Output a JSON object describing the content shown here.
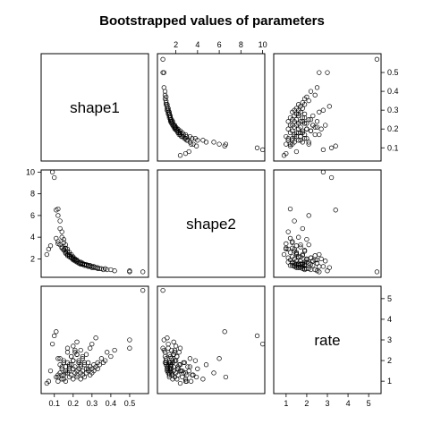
{
  "chart_data": {
    "type": "scatter",
    "title": "Bootstrapped values of parameters",
    "layout": "pairs",
    "variables": [
      "shape1",
      "shape2",
      "rate"
    ],
    "ranges": {
      "shape1": [
        0.03,
        0.6
      ],
      "shape2": [
        0.3,
        10.2
      ],
      "rate": [
        0.4,
        5.6
      ]
    },
    "ticks": {
      "shape1": [
        0.1,
        0.2,
        0.3,
        0.4,
        0.5
      ],
      "shape2": [
        2,
        4,
        6,
        8,
        10
      ],
      "rate": [
        1,
        2,
        3,
        4,
        5
      ]
    },
    "tick_labels": {
      "shape1": [
        "0.1",
        "0.2",
        "0.3",
        "0.4",
        "0.5"
      ],
      "shape2": [
        "2",
        "4",
        "6",
        "8",
        "10"
      ],
      "rate": [
        "1",
        "2",
        "3",
        "4",
        "5"
      ]
    },
    "points": {
      "shape1": [
        0.57,
        0.5,
        0.5,
        0.42,
        0.4,
        0.38,
        0.37,
        0.36,
        0.35,
        0.34,
        0.33,
        0.33,
        0.32,
        0.31,
        0.31,
        0.3,
        0.3,
        0.29,
        0.29,
        0.28,
        0.28,
        0.27,
        0.27,
        0.26,
        0.26,
        0.25,
        0.25,
        0.24,
        0.24,
        0.24,
        0.23,
        0.23,
        0.22,
        0.22,
        0.22,
        0.21,
        0.21,
        0.2,
        0.2,
        0.2,
        0.19,
        0.19,
        0.18,
        0.18,
        0.17,
        0.17,
        0.16,
        0.16,
        0.15,
        0.15,
        0.14,
        0.14,
        0.13,
        0.13,
        0.12,
        0.12,
        0.11,
        0.1,
        0.09,
        0.08,
        0.07,
        0.06,
        0.25,
        0.22,
        0.18,
        0.2,
        0.15,
        0.28,
        0.24,
        0.19,
        0.16,
        0.21,
        0.23,
        0.17,
        0.14,
        0.12,
        0.26,
        0.3,
        0.11,
        0.13,
        0.27,
        0.22,
        0.18,
        0.2,
        0.24,
        0.16,
        0.19,
        0.21,
        0.15,
        0.23,
        0.29,
        0.17,
        0.14,
        0.25,
        0.32,
        0.12,
        0.2,
        0.18,
        0.22,
        0.16
      ],
      "shape2": [
        0.8,
        0.9,
        0.8,
        0.9,
        1.0,
        1.0,
        1.1,
        1.0,
        1.1,
        1.1,
        1.2,
        1.1,
        1.2,
        1.2,
        1.3,
        1.2,
        1.3,
        1.3,
        1.4,
        1.3,
        1.4,
        1.4,
        1.5,
        1.4,
        1.5,
        1.5,
        1.6,
        1.5,
        1.6,
        1.7,
        1.6,
        1.7,
        1.7,
        1.8,
        1.9,
        1.8,
        2.0,
        1.9,
        2.1,
        2.2,
        2.2,
        2.4,
        2.4,
        2.6,
        2.7,
        2.9,
        3.0,
        3.3,
        3.5,
        3.8,
        4.0,
        4.5,
        4.8,
        5.5,
        6.0,
        6.6,
        6.5,
        9.5,
        10.0,
        3.2,
        2.9,
        2.4,
        1.6,
        1.8,
        2.3,
        2.0,
        2.8,
        1.4,
        1.6,
        2.1,
        2.6,
        1.9,
        1.7,
        2.4,
        3.1,
        3.6,
        1.5,
        1.3,
        3.9,
        3.3,
        1.4,
        1.8,
        2.2,
        2.0,
        1.6,
        2.7,
        2.1,
        1.9,
        2.9,
        1.7,
        1.3,
        2.3,
        3.0,
        1.5,
        1.2,
        3.4,
        2.0,
        2.2,
        1.8,
        2.5
      ],
      "rate": [
        5.4,
        3.0,
        2.6,
        2.5,
        2.2,
        2.4,
        2.0,
        1.9,
        2.1,
        1.8,
        1.6,
        1.9,
        1.7,
        1.5,
        1.8,
        1.6,
        1.4,
        1.7,
        1.3,
        1.5,
        1.9,
        1.4,
        1.6,
        1.2,
        1.8,
        1.5,
        1.3,
        1.7,
        1.4,
        1.1,
        1.6,
        1.9,
        1.3,
        1.5,
        1.2,
        1.7,
        1.4,
        2.0,
        1.1,
        1.6,
        1.3,
        1.8,
        1.5,
        1.2,
        1.9,
        1.4,
        1.0,
        1.7,
        1.3,
        2.0,
        1.6,
        1.1,
        1.8,
        1.4,
        2.1,
        1.2,
        3.4,
        3.2,
        2.8,
        1.5,
        1.0,
        0.9,
        2.1,
        2.3,
        1.8,
        2.7,
        1.9,
        1.6,
        2.5,
        2.2,
        1.5,
        2.4,
        2.0,
        2.6,
        1.7,
        1.3,
        1.9,
        2.8,
        1.2,
        2.1,
        2.3,
        2.9,
        1.6,
        2.0,
        1.8,
        1.4,
        2.2,
        2.5,
        1.1,
        1.9,
        2.6,
        2.4,
        1.3,
        2.2,
        3.1,
        1.0,
        2.0,
        1.7,
        2.3,
        1.5
      ]
    }
  }
}
